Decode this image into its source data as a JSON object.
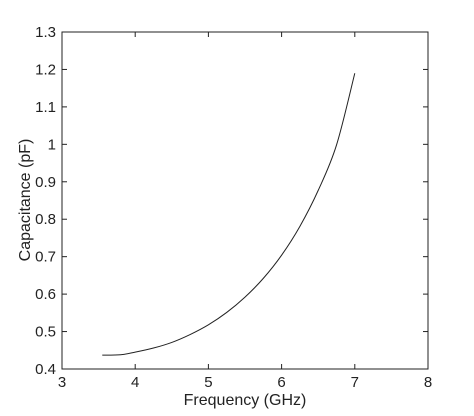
{
  "chart_data": {
    "type": "line",
    "title": "",
    "xlabel": "Frequency (GHz)",
    "ylabel": "Capacitance (pF)",
    "xlim": [
      3,
      8
    ],
    "ylim": [
      0.4,
      1.3
    ],
    "xticks": [
      3,
      4,
      5,
      6,
      7,
      8
    ],
    "yticks": [
      0.4,
      0.5,
      0.6,
      0.7,
      0.8,
      0.9,
      1,
      1.1,
      1.2,
      1.3
    ],
    "grid": false,
    "legend": "none",
    "series": [
      {
        "color": "#222222",
        "x": [
          3.55,
          3.8,
          4.0,
          4.25,
          4.5,
          4.75,
          5.0,
          5.25,
          5.5,
          5.75,
          6.0,
          6.25,
          6.5,
          6.75,
          7.0
        ],
        "y": [
          0.437,
          0.438,
          0.445,
          0.456,
          0.471,
          0.492,
          0.518,
          0.551,
          0.592,
          0.642,
          0.704,
          0.781,
          0.877,
          0.998,
          1.19
        ]
      }
    ]
  }
}
